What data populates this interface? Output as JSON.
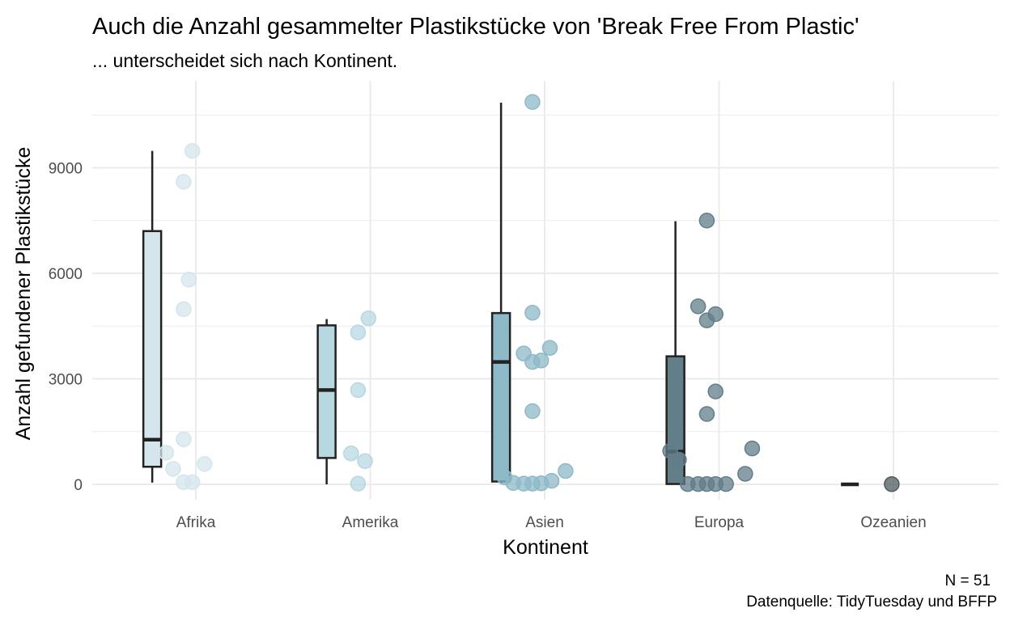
{
  "chart_data": {
    "type": "box",
    "title": "Auch die Anzahl gesammelter Plastikstücke von 'Break Free From Plastic'",
    "subtitle": "... unterscheidet sich nach Kontinent.",
    "xlabel": "Kontinent",
    "ylabel": "Anzahl gefundener Plastikstücke",
    "caption_lines": [
      "N = 51",
      "Datenquelle: TidyTuesday und BFFP"
    ],
    "categories": [
      "Afrika",
      "Amerika",
      "Asien",
      "Europa",
      "Ozeanien"
    ],
    "yticks": [
      0,
      3000,
      6000,
      9000
    ],
    "ylim": [
      -250,
      11350
    ],
    "grid": true,
    "legend": "none",
    "colors": [
      "#d4e6ec",
      "#b8d8e1",
      "#8db9c8",
      "#627e89",
      "#4d5b61"
    ],
    "series": [
      {
        "box": {
          "min": 50,
          "q1": 500,
          "median": 1270,
          "q3": 7200,
          "max": 9480
        },
        "points": [
          {
            "x": 0.98,
            "y": 9480
          },
          {
            "x": 0.93,
            "y": 8600
          },
          {
            "x": 0.96,
            "y": 5820
          },
          {
            "x": 0.93,
            "y": 4980
          },
          {
            "x": 0.93,
            "y": 1280
          },
          {
            "x": 0.83,
            "y": 900
          },
          {
            "x": 0.87,
            "y": 440
          },
          {
            "x": 1.05,
            "y": 580
          },
          {
            "x": 0.93,
            "y": 60
          },
          {
            "x": 0.98,
            "y": 60
          }
        ]
      },
      {
        "box": {
          "min": 0,
          "q1": 750,
          "median": 2680,
          "q3": 4520,
          "max": 4700
        },
        "points": [
          {
            "x": 1.99,
            "y": 4720
          },
          {
            "x": 1.93,
            "y": 4320
          },
          {
            "x": 1.93,
            "y": 2680
          },
          {
            "x": 1.89,
            "y": 880
          },
          {
            "x": 1.97,
            "y": 660
          },
          {
            "x": 1.93,
            "y": 20
          }
        ]
      },
      {
        "box": {
          "min": 30,
          "q1": 80,
          "median": 3480,
          "q3": 4870,
          "max": 10850
        },
        "points": [
          {
            "x": 2.93,
            "y": 10870
          },
          {
            "x": 2.93,
            "y": 4880
          },
          {
            "x": 3.03,
            "y": 3880
          },
          {
            "x": 2.88,
            "y": 3720
          },
          {
            "x": 2.93,
            "y": 3480
          },
          {
            "x": 2.98,
            "y": 3520
          },
          {
            "x": 2.93,
            "y": 2080
          },
          {
            "x": 2.77,
            "y": 200
          },
          {
            "x": 3.12,
            "y": 380
          },
          {
            "x": 3.04,
            "y": 100
          },
          {
            "x": 2.82,
            "y": 40
          },
          {
            "x": 2.88,
            "y": 20
          },
          {
            "x": 2.93,
            "y": 20
          },
          {
            "x": 2.98,
            "y": 30
          }
        ]
      },
      {
        "box": {
          "min": 0,
          "q1": 10,
          "median": 930,
          "q3": 3640,
          "max": 7480
        },
        "points": [
          {
            "x": 3.93,
            "y": 7500
          },
          {
            "x": 3.88,
            "y": 5060
          },
          {
            "x": 3.98,
            "y": 4840
          },
          {
            "x": 3.93,
            "y": 4660
          },
          {
            "x": 3.98,
            "y": 2640
          },
          {
            "x": 3.93,
            "y": 2000
          },
          {
            "x": 4.19,
            "y": 1020
          },
          {
            "x": 3.72,
            "y": 950
          },
          {
            "x": 3.77,
            "y": 700
          },
          {
            "x": 4.15,
            "y": 300
          },
          {
            "x": 3.82,
            "y": 10
          },
          {
            "x": 3.88,
            "y": 10
          },
          {
            "x": 3.93,
            "y": 10
          },
          {
            "x": 3.98,
            "y": 10
          },
          {
            "x": 4.04,
            "y": 10
          }
        ]
      },
      {
        "box": {
          "min": 0,
          "q1": 0,
          "median": 0,
          "q3": 0,
          "max": 0
        },
        "points": [
          {
            "x": 4.99,
            "y": 5
          }
        ]
      }
    ]
  }
}
